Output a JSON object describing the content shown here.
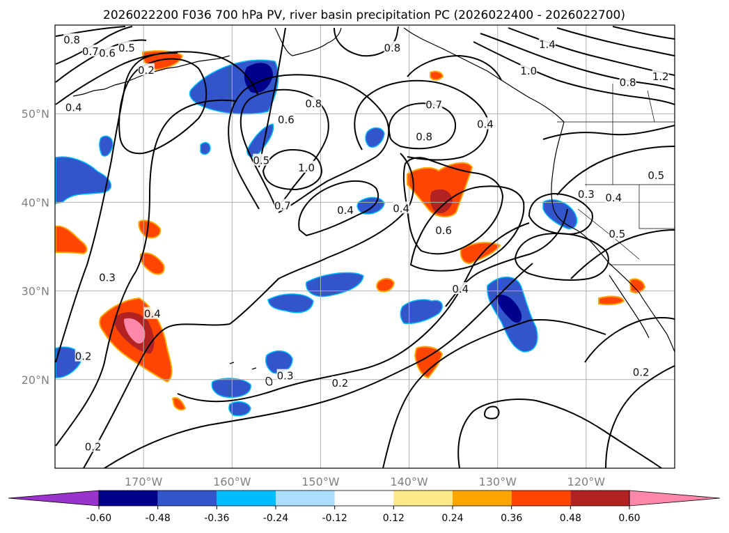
{
  "title": "2026022200 F036 700 hPa PV, river basin precipitation PC (2026022400 - 2026022700)",
  "map": {
    "lon_range": [
      -180,
      -110
    ],
    "lat_range": [
      10,
      60
    ],
    "lat_ticks": [
      {
        "value": 50,
        "label": "50°N"
      },
      {
        "value": 40,
        "label": "40°N"
      },
      {
        "value": 30,
        "label": "30°N"
      },
      {
        "value": 20,
        "label": "20°N"
      }
    ],
    "lon_ticks": [
      {
        "value": -170,
        "label": "170°W"
      },
      {
        "value": -160,
        "label": "160°W"
      },
      {
        "value": -150,
        "label": "150°W"
      },
      {
        "value": -140,
        "label": "140°W"
      },
      {
        "value": -130,
        "label": "130°W"
      },
      {
        "value": -120,
        "label": "120°W"
      }
    ],
    "gridlines": true,
    "contour_labels": [
      {
        "text": "0.8",
        "lon": -178.1,
        "lat": 58.3
      },
      {
        "text": "0.7",
        "lon": -176.0,
        "lat": 57.0
      },
      {
        "text": "0.6",
        "lon": -174.1,
        "lat": 56.8
      },
      {
        "text": "0.5",
        "lon": -171.9,
        "lat": 57.4
      },
      {
        "text": "0.2",
        "lon": -169.7,
        "lat": 54.9
      },
      {
        "text": "0.4",
        "lon": -177.9,
        "lat": 50.7
      },
      {
        "text": "0.6",
        "lon": -153.9,
        "lat": 49.3
      },
      {
        "text": "0.8",
        "lon": -150.8,
        "lat": 51.1
      },
      {
        "text": "0.5",
        "lon": -156.7,
        "lat": 44.7
      },
      {
        "text": "1.0",
        "lon": -151.6,
        "lat": 43.9
      },
      {
        "text": "0.7",
        "lon": -154.3,
        "lat": 39.6
      },
      {
        "text": "0.4",
        "lon": -147.2,
        "lat": 39.1
      },
      {
        "text": "0.4",
        "lon": -140.9,
        "lat": 39.3
      },
      {
        "text": "0.8",
        "lon": -141.9,
        "lat": 57.4
      },
      {
        "text": "0.7",
        "lon": -137.2,
        "lat": 51.0
      },
      {
        "text": "0.8",
        "lon": -138.3,
        "lat": 47.4
      },
      {
        "text": "0.4",
        "lon": -131.4,
        "lat": 48.8
      },
      {
        "text": "1.4",
        "lon": -124.4,
        "lat": 57.8
      },
      {
        "text": "1.0",
        "lon": -126.5,
        "lat": 54.8
      },
      {
        "text": "1.2",
        "lon": -111.6,
        "lat": 54.2
      },
      {
        "text": "0.8",
        "lon": -115.3,
        "lat": 53.5
      },
      {
        "text": "0.5",
        "lon": -112.1,
        "lat": 43.0
      },
      {
        "text": "0.4",
        "lon": -116.9,
        "lat": 40.5
      },
      {
        "text": "0.3",
        "lon": -120.0,
        "lat": 40.9
      },
      {
        "text": "0.6",
        "lon": -136.1,
        "lat": 36.8
      },
      {
        "text": "0.4",
        "lon": -134.2,
        "lat": 30.2
      },
      {
        "text": "0.3",
        "lon": -174.1,
        "lat": 31.5
      },
      {
        "text": "0.4",
        "lon": -169.0,
        "lat": 27.4
      },
      {
        "text": "0.2",
        "lon": -176.8,
        "lat": 22.6
      },
      {
        "text": "0.3",
        "lon": -154.0,
        "lat": 20.4
      },
      {
        "text": "0.2",
        "lon": -147.8,
        "lat": 19.6
      },
      {
        "text": "0.2",
        "lon": -113.8,
        "lat": 20.8
      },
      {
        "text": "0.5",
        "lon": -116.5,
        "lat": 36.4
      },
      {
        "text": "0.2",
        "lon": -175.7,
        "lat": 12.4
      }
    ]
  },
  "colorbar": {
    "levels": [
      "-0.60",
      "-0.48",
      "-0.36",
      "-0.24",
      "-0.12",
      "0.12",
      "0.24",
      "0.36",
      "0.48",
      "0.60"
    ],
    "colors": [
      "#9933cc",
      "#00008b",
      "#3355cc",
      "#00bbff",
      "#aaddff",
      "#ffffff",
      "#ffe88a",
      "#ffa500",
      "#ff4500",
      "#b22222",
      "#ff88aa"
    ],
    "extend": "both"
  }
}
